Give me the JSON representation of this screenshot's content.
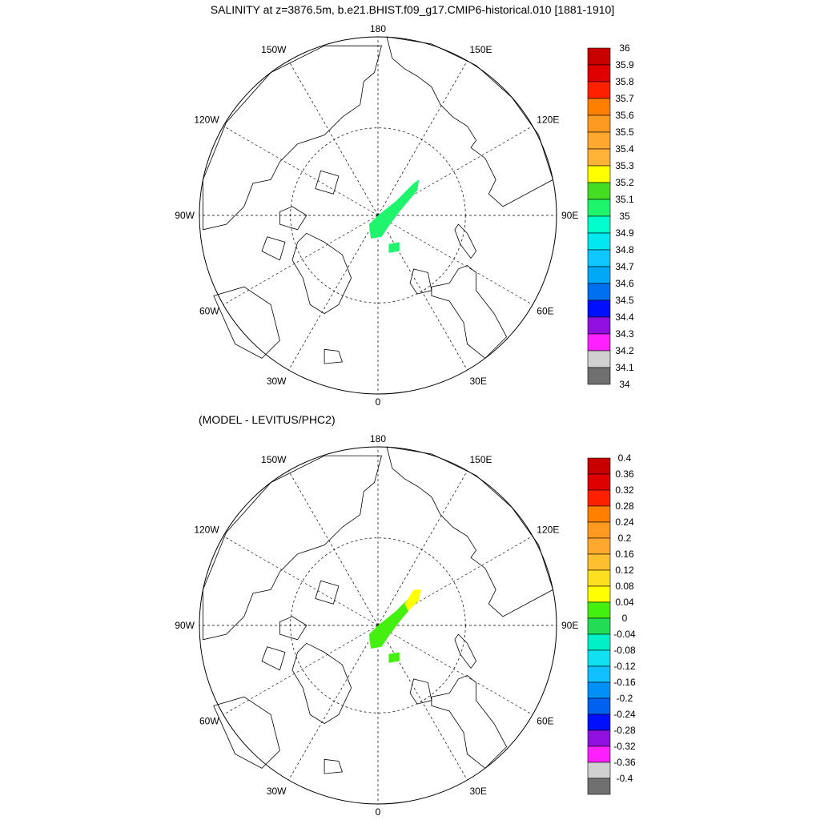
{
  "title": "SALINITY at z=3876.5m, b.e21.BHIST.f09_g17.CMIP6-historical.010 [1881-1910]",
  "chart_data": [
    {
      "type": "map",
      "projection": "north-polar-stereographic",
      "title": "SALINITY at z=3876.5m, b.e21.BHIST.f09_g17.CMIP6-historical.010 [1881-1910]",
      "meridian_labels": [
        {
          "lon": 180,
          "text": "180"
        },
        {
          "lon": 150,
          "text": "150E"
        },
        {
          "lon": 120,
          "text": "120E"
        },
        {
          "lon": 90,
          "text": "90E"
        },
        {
          "lon": 60,
          "text": "60E"
        },
        {
          "lon": 30,
          "text": "30E"
        },
        {
          "lon": 0,
          "text": "0"
        },
        {
          "lon": -30,
          "text": "30W"
        },
        {
          "lon": -60,
          "text": "60W"
        },
        {
          "lon": -90,
          "text": "90W"
        },
        {
          "lon": -120,
          "text": "120W"
        },
        {
          "lon": -150,
          "text": "150W"
        }
      ],
      "grid": true,
      "colorbar": {
        "levels": [
          "36",
          "35.9",
          "35.8",
          "35.7",
          "35.6",
          "35.5",
          "35.4",
          "35.3",
          "35.2",
          "35.1",
          "35",
          "34.9",
          "34.8",
          "34.7",
          "34.6",
          "34.5",
          "34.4",
          "34.3",
          "34.2",
          "34.1",
          "34"
        ],
        "colors": [
          "#c80000",
          "#e10000",
          "#ff2000",
          "#ff8000",
          "#ff9a20",
          "#ffa830",
          "#ffb238",
          "#ffff00",
          "#44dd22",
          "#1ef56c",
          "#00ffcc",
          "#00e8f0",
          "#10c8ff",
          "#00a8f8",
          "#0070f0",
          "#0010ff",
          "#9010e0",
          "#ff20ff",
          "#d0d0d0",
          "#707070"
        ]
      },
      "data_region_color": "#1ef56c",
      "data_region_value": "35.0-35.1"
    },
    {
      "type": "map",
      "projection": "north-polar-stereographic",
      "title": "(MODEL - LEVITUS/PHC2)",
      "meridian_labels": [
        {
          "lon": 180,
          "text": "180"
        },
        {
          "lon": 150,
          "text": "150E"
        },
        {
          "lon": 120,
          "text": "120E"
        },
        {
          "lon": 90,
          "text": "90E"
        },
        {
          "lon": 60,
          "text": "60E"
        },
        {
          "lon": 30,
          "text": "30E"
        },
        {
          "lon": 0,
          "text": "0"
        },
        {
          "lon": -30,
          "text": "30W"
        },
        {
          "lon": -60,
          "text": "60W"
        },
        {
          "lon": -90,
          "text": "90W"
        },
        {
          "lon": -120,
          "text": "120W"
        },
        {
          "lon": -150,
          "text": "150W"
        }
      ],
      "grid": true,
      "colorbar": {
        "levels": [
          "0.4",
          "0.36",
          "0.32",
          "0.28",
          "0.24",
          "0.2",
          "0.16",
          "0.12",
          "0.08",
          "0.04",
          "0",
          "-0.04",
          "-0.08",
          "-0.12",
          "-0.16",
          "-0.2",
          "-0.24",
          "-0.28",
          "-0.32",
          "-0.36",
          "-0.4"
        ],
        "colors": [
          "#c80000",
          "#e10000",
          "#ff2000",
          "#ff8000",
          "#ff9a20",
          "#ffa830",
          "#ffc030",
          "#ffe020",
          "#ffff00",
          "#44f010",
          "#22dd55",
          "#00f0c8",
          "#10e0f0",
          "#10c0ff",
          "#0090f8",
          "#0060f0",
          "#0010ff",
          "#9010e0",
          "#ff20ff",
          "#d0d0d0",
          "#707070"
        ]
      },
      "data_region_colors": [
        "#44f010",
        "#ffff00"
      ],
      "data_region_values": [
        "0.04-0.08",
        "0.08-0.12"
      ]
    }
  ]
}
